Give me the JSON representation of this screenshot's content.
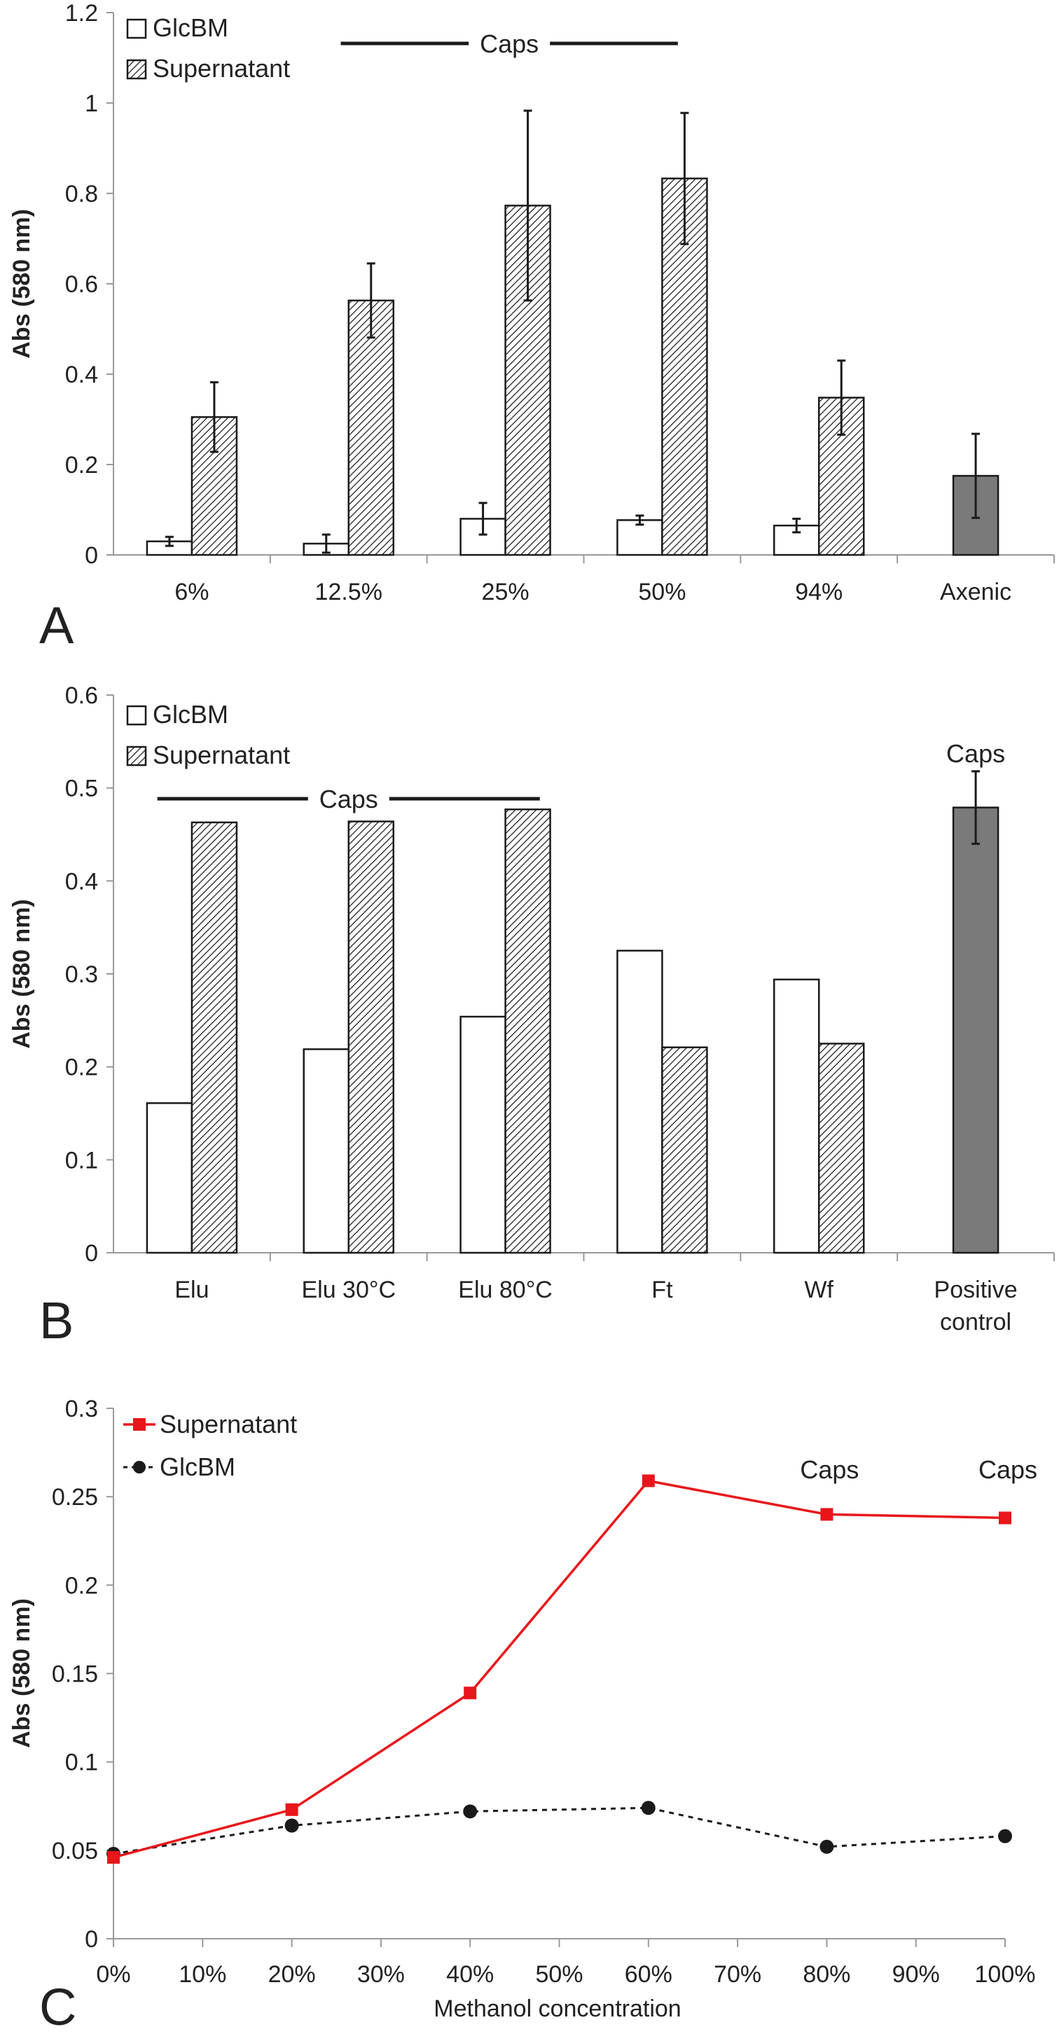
{
  "colors": {
    "supernatant_line": "#e8161b",
    "glcbm_line": "#1a1a1a",
    "axenic_bar": "#7a7a7a",
    "axis": "#999999",
    "hatch": "#222222"
  },
  "chart_data": [
    {
      "panel": "A",
      "type": "bar",
      "ylabel": "Abs (580 nm)",
      "ylim": [
        0,
        1.2
      ],
      "yticks": [
        "0",
        "0.2",
        "0.4",
        "0.6",
        "0.8",
        "1",
        "1.2"
      ],
      "categories": [
        "6%",
        "12.5%",
        "25%",
        "50%",
        "94%",
        "Axenic"
      ],
      "series": [
        {
          "name": "GlcBM",
          "pattern": "open",
          "values": [
            0.03,
            0.025,
            0.08,
            0.077,
            0.065,
            null
          ],
          "errors": [
            0.01,
            0.02,
            0.035,
            0.01,
            0.015,
            null
          ]
        },
        {
          "name": "Supernatant",
          "pattern": "hatched",
          "values": [
            0.305,
            0.563,
            0.773,
            0.833,
            0.348,
            null
          ],
          "errors": [
            0.077,
            0.082,
            0.21,
            0.145,
            0.082,
            null
          ]
        },
        {
          "name": "",
          "pattern": "solid",
          "values": [
            null,
            null,
            null,
            null,
            null,
            0.175
          ],
          "errors": [
            null,
            null,
            null,
            null,
            null,
            0.093
          ]
        }
      ],
      "legend_position": "top-left",
      "annotations": [
        {
          "text": "Caps",
          "type": "span",
          "from_category": 1,
          "to_category": 3
        }
      ]
    },
    {
      "panel": "B",
      "type": "bar",
      "ylabel": "Abs (580 nm)",
      "ylim": [
        0,
        0.6
      ],
      "yticks": [
        "0",
        "0.1",
        "0.2",
        "0.3",
        "0.4",
        "0.5",
        "0.6"
      ],
      "categories": [
        "Elu",
        "Elu 30°C",
        "Elu 80°C",
        "Ft",
        "Wf",
        "Positive control"
      ],
      "category_lines": [
        [
          "Elu"
        ],
        [
          "Elu 30°C"
        ],
        [
          "Elu 80°C"
        ],
        [
          "Ft"
        ],
        [
          "Wf"
        ],
        [
          "Positive",
          "control"
        ]
      ],
      "series": [
        {
          "name": "GlcBM",
          "pattern": "open",
          "values": [
            0.161,
            0.219,
            0.254,
            0.325,
            0.294,
            null
          ]
        },
        {
          "name": "Supernatant",
          "pattern": "hatched",
          "values": [
            0.463,
            0.464,
            0.477,
            0.221,
            0.225,
            null
          ]
        },
        {
          "name": "",
          "pattern": "solid",
          "values": [
            null,
            null,
            null,
            null,
            null,
            0.479
          ],
          "errors": [
            null,
            null,
            null,
            null,
            null,
            0.039
          ]
        }
      ],
      "legend_position": "top-left",
      "annotations": [
        {
          "text": "Caps",
          "type": "span",
          "from_category": 0,
          "to_category": 2
        },
        {
          "text": "Caps",
          "type": "label",
          "category": 5
        }
      ]
    },
    {
      "panel": "C",
      "type": "line",
      "xlabel": "Methanol concentration",
      "ylabel": "Abs (580 nm)",
      "xlim": [
        0,
        100
      ],
      "ylim": [
        0,
        0.3
      ],
      "xticks": [
        "0%",
        "10%",
        "20%",
        "30%",
        "40%",
        "50%",
        "60%",
        "70%",
        "80%",
        "90%",
        "100%"
      ],
      "yticks": [
        "0",
        "0.05",
        "0.1",
        "0.15",
        "0.2",
        "0.25",
        "0.3"
      ],
      "series": [
        {
          "name": "Supernatant",
          "marker": "square",
          "style": "solid",
          "x": [
            0,
            20,
            40,
            60,
            80,
            100
          ],
          "y": [
            0.046,
            0.073,
            0.139,
            0.259,
            0.24,
            0.238
          ]
        },
        {
          "name": "GlcBM",
          "marker": "circle",
          "style": "dotted",
          "x": [
            0,
            20,
            40,
            60,
            80,
            100
          ],
          "y": [
            0.048,
            0.064,
            0.072,
            0.074,
            0.052,
            0.058
          ]
        }
      ],
      "legend_position": "top-left",
      "annotations": [
        {
          "text": "Caps",
          "x": 80
        },
        {
          "text": "Caps",
          "x": 100
        }
      ]
    }
  ]
}
